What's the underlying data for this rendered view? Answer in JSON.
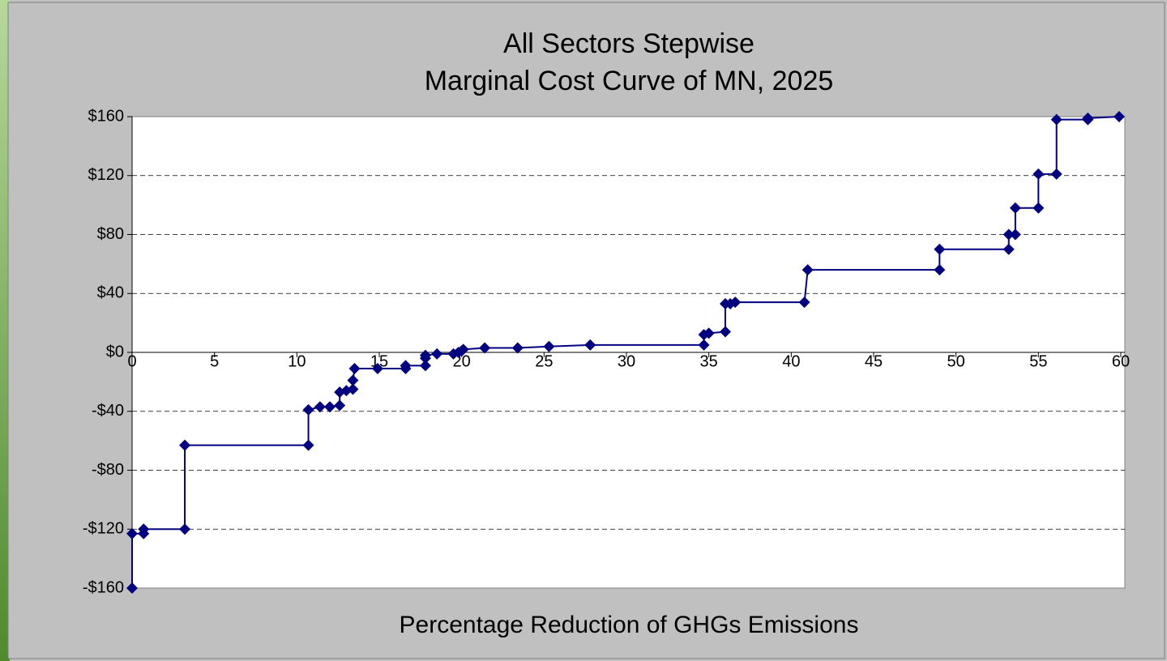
{
  "chart_data": {
    "type": "line",
    "title": [
      "All Sectors Stepwise",
      "Marginal Cost Curve of MN, 2025"
    ],
    "x_label": "Percentage Reduction of GHGs Emissions",
    "series": [
      {
        "color": "#000080",
        "x": [
          0,
          0,
          0.7,
          0.7,
          3.2,
          3.2,
          10.7,
          10.7,
          11.4,
          12.0,
          12.6,
          12.6,
          13.0,
          13.4,
          13.4,
          13.5,
          14.9,
          16.6,
          16.6,
          17.8,
          17.8,
          17.8,
          18.5,
          19.5,
          19.8,
          20.0,
          20.1,
          21.4,
          23.4,
          25.3,
          27.8,
          34.7,
          34.7,
          35.0,
          36.0,
          36.0,
          36.3,
          36.6,
          40.8,
          41.0,
          49.0,
          49.0,
          53.2,
          53.2,
          53.6,
          53.6,
          55.0,
          55.0,
          56.1,
          56.1,
          58.0,
          58.0,
          59.9
        ],
        "values": [
          -160,
          -123,
          -123,
          -120,
          -120,
          -63,
          -63,
          -39,
          -37,
          -37,
          -36,
          -27,
          -26,
          -25,
          -19,
          -11,
          -11,
          -11,
          -9,
          -9,
          -4,
          -2,
          -1,
          -1,
          0,
          1,
          2,
          3,
          3,
          4,
          5,
          5,
          12,
          13,
          14,
          33,
          33,
          34,
          34,
          56,
          56,
          70,
          70,
          80,
          80,
          98,
          98,
          121,
          121,
          158,
          158,
          159,
          160
        ]
      }
    ],
    "xlim": [
      0,
      60
    ],
    "xticks": [
      0,
      5,
      10,
      15,
      20,
      25,
      30,
      35,
      40,
      45,
      50,
      55,
      60
    ],
    "ylim": [
      -160,
      160
    ],
    "yticks": [
      {
        "value": -160,
        "label": "-$160"
      },
      {
        "value": -120,
        "label": "-$120"
      },
      {
        "value": -80,
        "label": "-$80"
      },
      {
        "value": -40,
        "label": "-$40"
      },
      {
        "value": 0,
        "label": "$0"
      },
      {
        "value": 40,
        "label": "$40"
      },
      {
        "value": 80,
        "label": "$80"
      },
      {
        "value": 120,
        "label": "$120"
      },
      {
        "value": 160,
        "label": "$160"
      }
    ],
    "grid": true,
    "marker": "diamond"
  }
}
